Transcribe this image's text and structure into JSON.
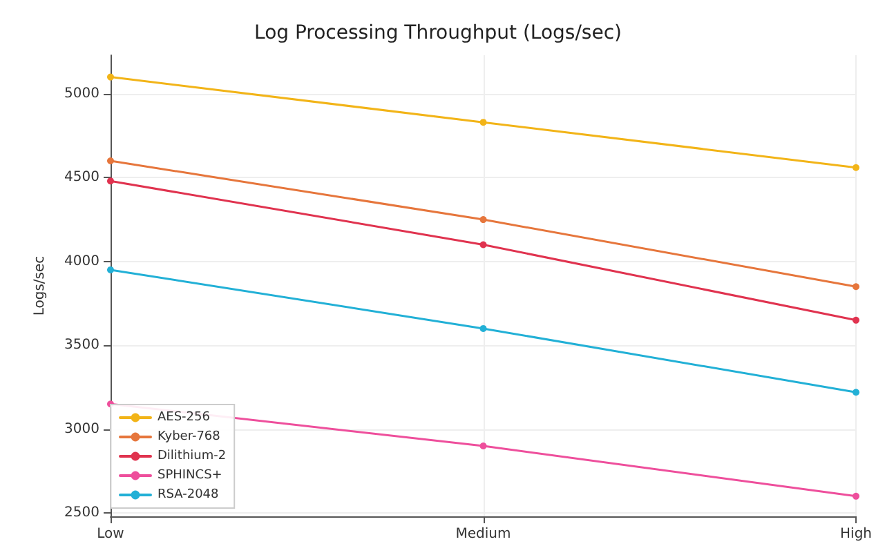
{
  "chart_data": {
    "type": "line",
    "title": "Log Processing Throughput (Logs/sec)",
    "ylabel": "Logs/sec",
    "categories": [
      "Low",
      "Medium",
      "High"
    ],
    "series": [
      {
        "name": "AES-256",
        "color": "#f2b418",
        "values": [
          5100,
          4830,
          4560
        ]
      },
      {
        "name": "Kyber-768",
        "color": "#e6763c",
        "values": [
          4600,
          4250,
          3850
        ]
      },
      {
        "name": "Dilithium-2",
        "color": "#e0334f",
        "values": [
          4480,
          4100,
          3650
        ]
      },
      {
        "name": "SPHINCS+",
        "color": "#ee4f9c",
        "values": [
          3150,
          2900,
          2600
        ]
      },
      {
        "name": "RSA-2048",
        "color": "#22b0d6",
        "values": [
          3950,
          3600,
          3220
        ]
      }
    ],
    "ylim": [
      2480,
      5230
    ],
    "yticks": [
      2500,
      3000,
      3500,
      4000,
      4500,
      5000
    ],
    "grid": true,
    "legend": "bottom left",
    "marker": "circle",
    "line_style": "solid"
  }
}
